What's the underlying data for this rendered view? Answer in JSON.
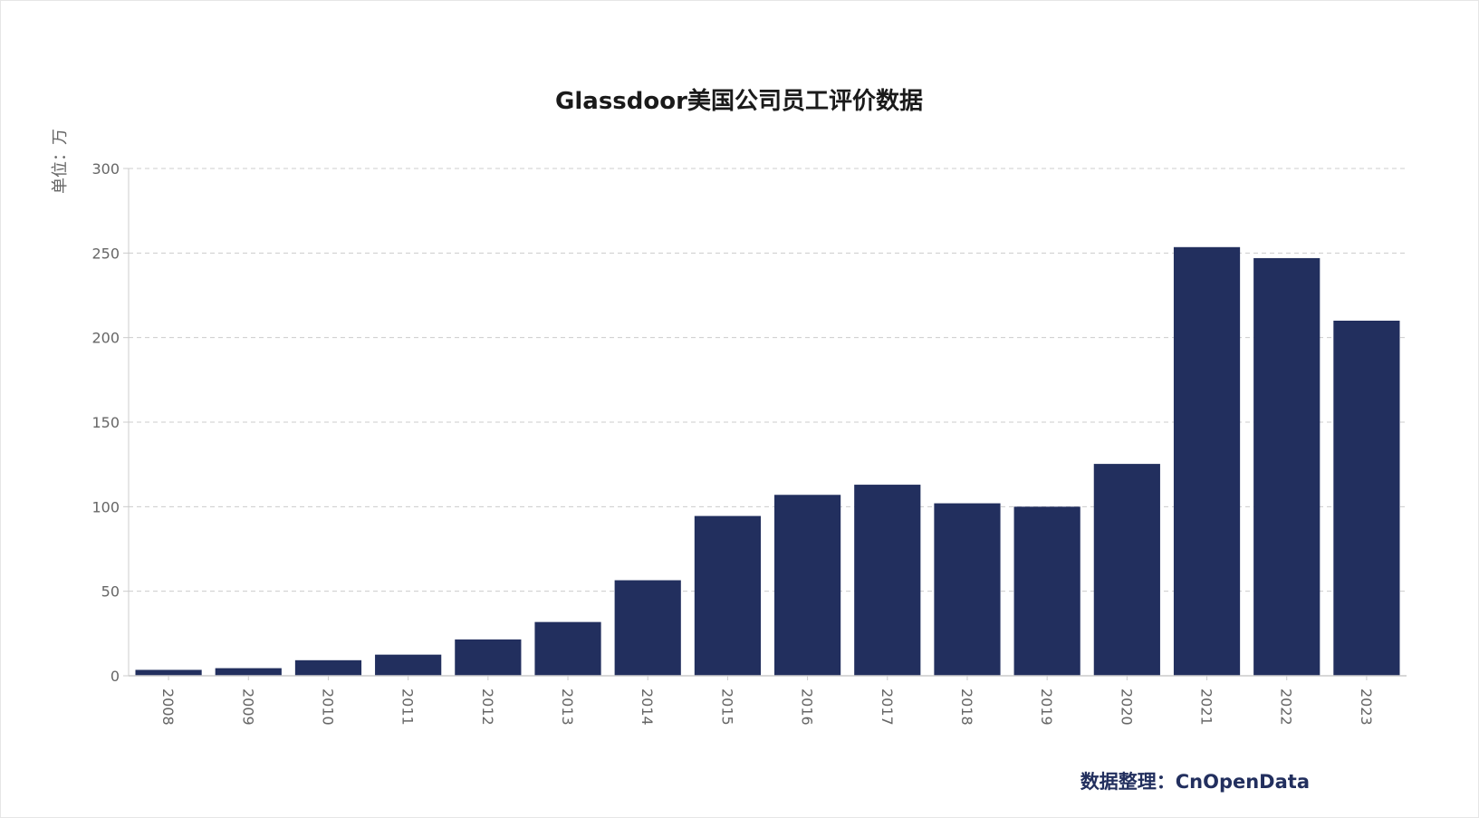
{
  "chart_data": {
    "type": "bar",
    "title": "Glassdoor美国公司员工评价数据",
    "unit_label": "单位：万",
    "categories": [
      "2008",
      "2009",
      "2010",
      "2011",
      "2012",
      "2013",
      "2014",
      "2015",
      "2016",
      "2017",
      "2018",
      "2019",
      "2020",
      "2021",
      "2022",
      "2023"
    ],
    "values": [
      3.5,
      4.5,
      9.2,
      12.5,
      21.5,
      31.8,
      56.5,
      94.5,
      107,
      113,
      102,
      100,
      125.3,
      253.5,
      247,
      210
    ],
    "ylim": [
      0,
      300
    ],
    "yticks": [
      "0",
      "50",
      "100",
      "150",
      "200",
      "250",
      "300"
    ],
    "grid": true,
    "bar_color": "#222f5e",
    "source": "数据整理：CnOpenData"
  },
  "colors": {
    "grid": "#cccccc",
    "axis": "#cccccc",
    "text": "#666666",
    "title": "#1a1a1a",
    "source": "#222f5e"
  }
}
